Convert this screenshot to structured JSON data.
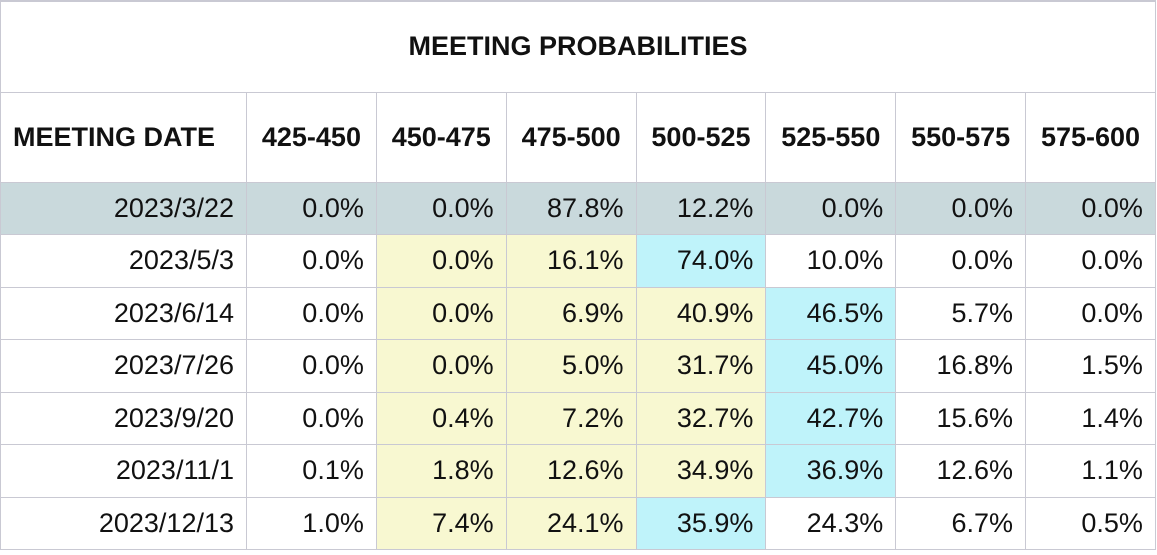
{
  "chart_data": {
    "type": "table",
    "title": "MEETING PROBABILITIES",
    "columns": [
      "MEETING DATE",
      "425-450",
      "450-475",
      "475-500",
      "500-525",
      "525-550",
      "550-575",
      "575-600"
    ],
    "rows": [
      {
        "date": "2023/3/22",
        "values": [
          "0.0%",
          "0.0%",
          "87.8%",
          "12.2%",
          "0.0%",
          "0.0%",
          "0.0%"
        ]
      },
      {
        "date": "2023/5/3",
        "values": [
          "0.0%",
          "0.0%",
          "16.1%",
          "74.0%",
          "10.0%",
          "0.0%",
          "0.0%"
        ]
      },
      {
        "date": "2023/6/14",
        "values": [
          "0.0%",
          "0.0%",
          "6.9%",
          "40.9%",
          "46.5%",
          "5.7%",
          "0.0%"
        ]
      },
      {
        "date": "2023/7/26",
        "values": [
          "0.0%",
          "0.0%",
          "5.0%",
          "31.7%",
          "45.0%",
          "16.8%",
          "1.5%"
        ]
      },
      {
        "date": "2023/9/20",
        "values": [
          "0.0%",
          "0.4%",
          "7.2%",
          "32.7%",
          "42.7%",
          "15.6%",
          "1.4%"
        ]
      },
      {
        "date": "2023/11/1",
        "values": [
          "0.1%",
          "1.8%",
          "12.6%",
          "34.9%",
          "36.9%",
          "12.6%",
          "1.1%"
        ]
      },
      {
        "date": "2023/12/13",
        "values": [
          "1.0%",
          "7.4%",
          "24.1%",
          "35.9%",
          "24.3%",
          "6.7%",
          "0.5%"
        ]
      }
    ]
  },
  "colors": {
    "current_row": "#c9d9dc",
    "highlight_yellow": "#f8f8d1",
    "highlight_cyan": "#bff3fa",
    "border": "#c9c9d3"
  }
}
